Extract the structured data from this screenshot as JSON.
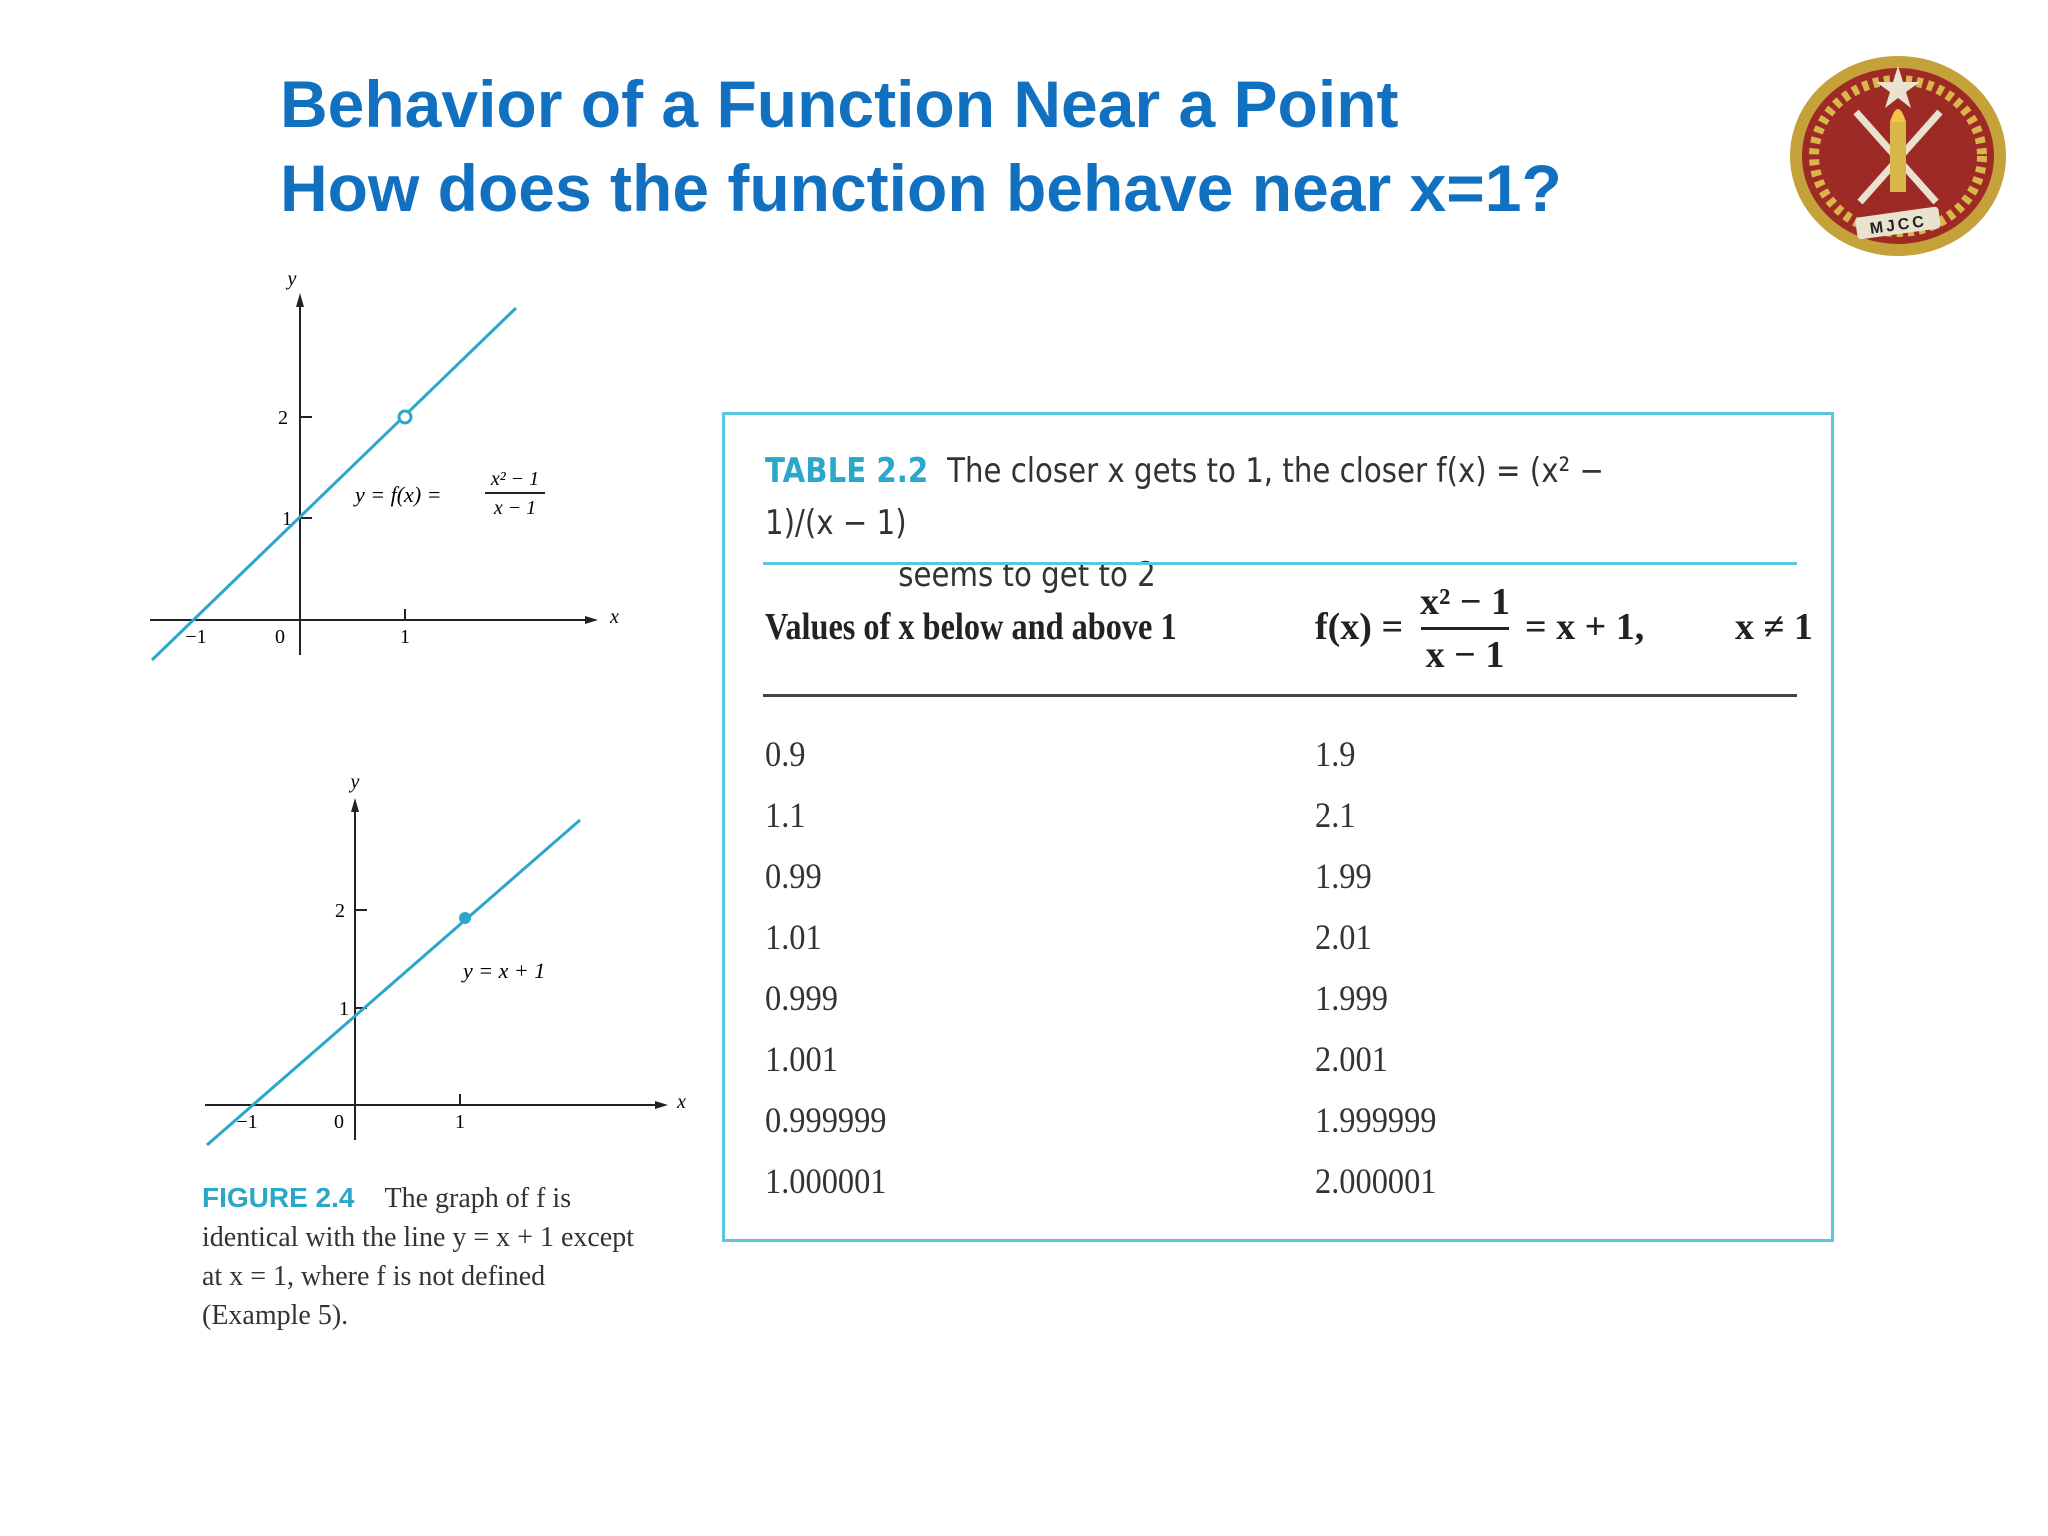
{
  "slide": {
    "title_line1": "Behavior of a Function Near a Point",
    "title_line2": "How does the function behave near  x=1?"
  },
  "logo": {
    "text": "MJCC",
    "colors": {
      "outer": "#c5a13a",
      "inner": "#9e2a26"
    }
  },
  "graph1": {
    "y_axis_label": "y",
    "x_axis_label": "x",
    "tick_labels": {
      "y2": "2",
      "y1": "1",
      "xm1": "−1",
      "x0": "0",
      "x1": "1"
    },
    "eq_left": "y = f(x) =",
    "eq_num": "x² − 1",
    "eq_den": "x − 1",
    "hole_point": [
      1,
      2
    ],
    "line_color": "#2aa7c9"
  },
  "graph2": {
    "y_axis_label": "y",
    "x_axis_label": "x",
    "tick_labels": {
      "y2": "2",
      "y1": "1",
      "xm1": "−1",
      "x0": "0",
      "x1": "1"
    },
    "equation": "y = x + 1",
    "filled_point": [
      1,
      2
    ],
    "line_color": "#2aa7c9"
  },
  "figure": {
    "label": "FIGURE 2.4",
    "text": "The graph of f is identical with the line y = x + 1 except at x = 1, where f is not defined (Example 5)."
  },
  "table": {
    "label": "TABLE 2.2",
    "caption_line1": "The closer x gets to 1, the closer f(x) = (x² − 1)/(x − 1)",
    "caption_line2": "seems to get to 2",
    "col1_header": "Values of x below and above 1",
    "col2_fx": "f(x) =",
    "col2_num": "x² − 1",
    "col2_den": "x − 1",
    "col2_rhs": "= x + 1,",
    "col2_cond": "x ≠ 1",
    "rows": [
      {
        "x": "0.9",
        "fx": "1.9"
      },
      {
        "x": "1.1",
        "fx": "2.1"
      },
      {
        "x": "0.99",
        "fx": "1.99"
      },
      {
        "x": "1.01",
        "fx": "2.01"
      },
      {
        "x": "0.999",
        "fx": "1.999"
      },
      {
        "x": "1.001",
        "fx": "2.001"
      },
      {
        "x": "0.999999",
        "fx": "1.999999"
      },
      {
        "x": "1.000001",
        "fx": "2.000001"
      }
    ]
  }
}
